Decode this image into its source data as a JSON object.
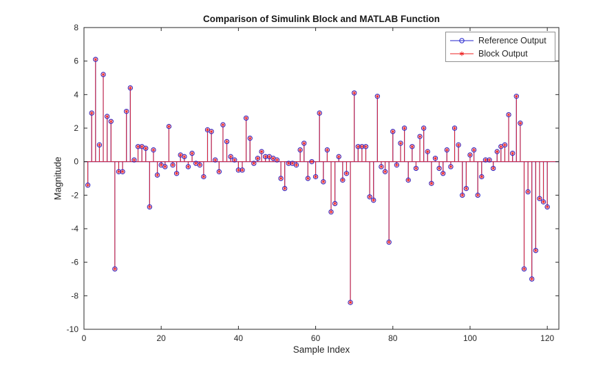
{
  "figure": {
    "background": "#ffffff",
    "axis_color": "#262626"
  },
  "chart_data": {
    "type": "stem",
    "title": "Comparison of Simulink Block and MATLAB Function",
    "xlabel": "Sample Index",
    "ylabel": "Magnitude",
    "xlim": [
      0,
      123
    ],
    "ylim": [
      -10,
      8
    ],
    "x_ticks": [
      0,
      20,
      40,
      60,
      80,
      100,
      120
    ],
    "y_ticks": [
      -10,
      -8,
      -6,
      -4,
      -2,
      0,
      2,
      4,
      6,
      8
    ],
    "grid": false,
    "legend_position": "top-right",
    "note": "Reference Output and Block Output overlap exactly at every sample; shared values below",
    "x_start": 1,
    "values": [
      -1.4,
      2.9,
      6.1,
      1.0,
      5.2,
      2.7,
      2.4,
      -6.4,
      -0.6,
      -0.6,
      3.0,
      4.4,
      0.1,
      0.9,
      0.9,
      0.8,
      -2.7,
      0.7,
      -0.8,
      -0.2,
      -0.3,
      2.1,
      -0.2,
      -0.7,
      0.4,
      0.3,
      -0.3,
      0.5,
      -0.1,
      -0.2,
      -0.9,
      1.9,
      1.8,
      0.1,
      -0.6,
      2.2,
      1.2,
      0.3,
      0.1,
      -0.5,
      -0.5,
      2.6,
      1.4,
      -0.1,
      0.2,
      0.6,
      0.3,
      0.3,
      0.2,
      0.1,
      -1.0,
      -1.6,
      -0.1,
      -0.1,
      -0.2,
      0.7,
      1.1,
      -1.0,
      0.0,
      -0.9,
      2.9,
      -1.2,
      0.7,
      -3.0,
      -2.5,
      0.3,
      -1.1,
      -0.7,
      -8.4,
      4.1,
      0.9,
      0.9,
      0.9,
      -2.1,
      -2.3,
      3.9,
      -0.3,
      -0.6,
      -4.8,
      1.8,
      -0.2,
      1.1,
      2.0,
      -1.1,
      0.9,
      -0.4,
      1.5,
      2.0,
      0.6,
      -1.3,
      0.2,
      -0.4,
      -0.7,
      0.7,
      -0.3,
      2.0,
      1.0,
      -2.0,
      -1.6,
      0.4,
      0.7,
      -2.0,
      -0.9,
      0.1,
      0.1,
      -0.4,
      0.6,
      0.9,
      1.0,
      2.8,
      0.5,
      3.9,
      2.3,
      -6.4,
      -1.8,
      -7.0,
      -5.3,
      -2.2,
      -2.4,
      -2.7
    ],
    "series": [
      {
        "name": "Reference Output",
        "marker": "circle",
        "color": "#2222cc"
      },
      {
        "name": "Block Output",
        "marker": "asterisk",
        "color": "#ee2222"
      }
    ]
  }
}
